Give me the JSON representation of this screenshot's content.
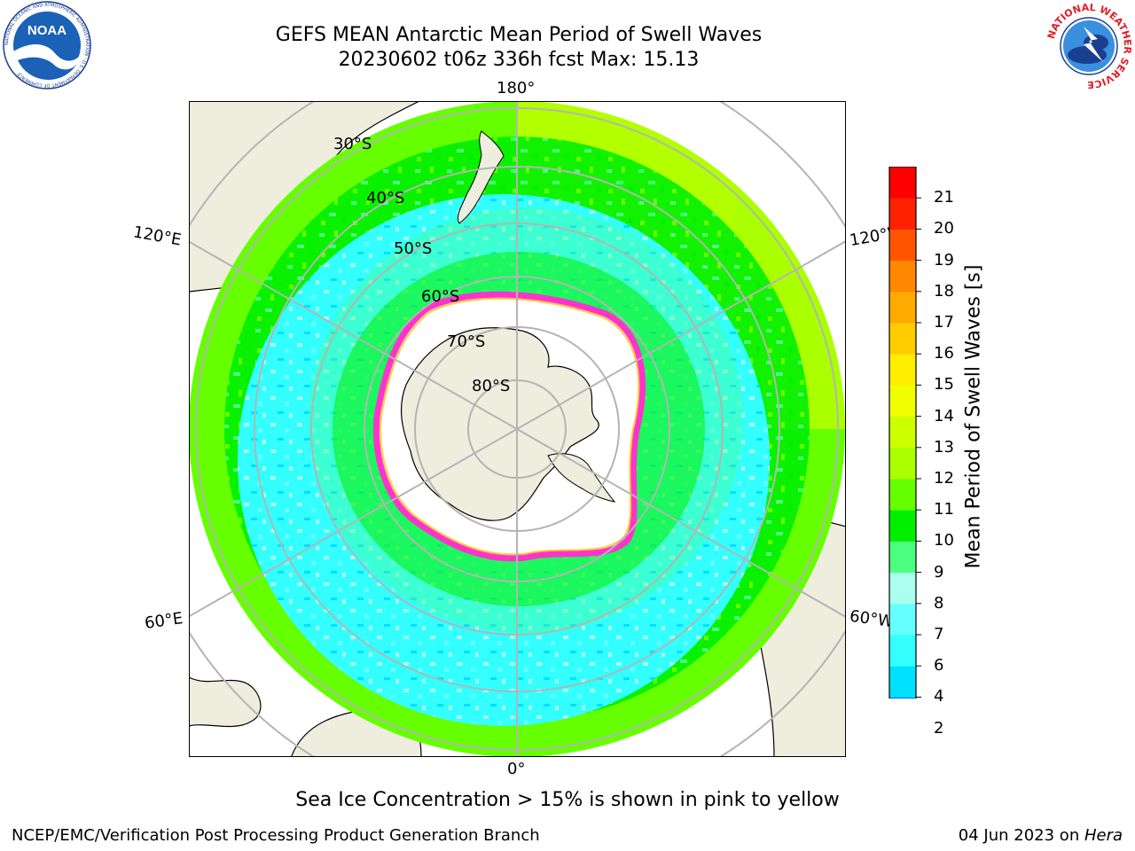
{
  "header": {
    "title_line1": "GEFS MEAN Antarctic Mean Period of Swell Waves",
    "title_line2": "20230602 t06z 336h fcst   Max: 15.13"
  },
  "logos": {
    "noaa_text": "NOAA",
    "noaa_ring_text": "NATIONAL OCEANIC AND ATMOSPHERIC ADMINISTRATION · U.S. DEPARTMENT OF COMMERCE",
    "nws_ring_text": "NATIONAL WEATHER SERVICE"
  },
  "map": {
    "projection": "south-polar-stereographic",
    "longitude_labels": {
      "top": "180°",
      "bottom": "0°",
      "upper_left": "120°E",
      "upper_right": "120°W",
      "lower_left": "60°E",
      "lower_right": "60°W"
    },
    "latitude_labels": [
      "30°S",
      "40°S",
      "50°S",
      "60°S",
      "70°S",
      "80°S"
    ],
    "colors": {
      "land": "#efedde",
      "sea_ice": "#ffffff",
      "ice_edge_pink": "#ff33cc",
      "ice_edge_yellow": "#ffcc33",
      "graticule": "#b4b4b4"
    }
  },
  "colorbar": {
    "label": "Mean Period of Swell Waves [s]",
    "ticks": [
      "2",
      "4",
      "6",
      "7",
      "8",
      "9",
      "10",
      "11",
      "12",
      "13",
      "14",
      "15",
      "16",
      "17",
      "18",
      "19",
      "20",
      "21"
    ],
    "colors": [
      "#0067ff",
      "#00e0ff",
      "#33ffff",
      "#66ffff",
      "#aaffee",
      "#4cff80",
      "#00f000",
      "#66ff00",
      "#aaff00",
      "#ccff00",
      "#f0ff00",
      "#ffee00",
      "#ffcc00",
      "#ffaa00",
      "#ff8800",
      "#ff5500",
      "#ff2200",
      "#ff0000"
    ],
    "under_color": "#0000ff"
  },
  "caption": "Sea Ice Concentration > 15% is shown in pink to yellow",
  "footer": {
    "left": "NCEP/EMC/Verification Post Processing Product Generation Branch",
    "right_date": "04 Jun 2023 on ",
    "right_host": "Hera"
  }
}
